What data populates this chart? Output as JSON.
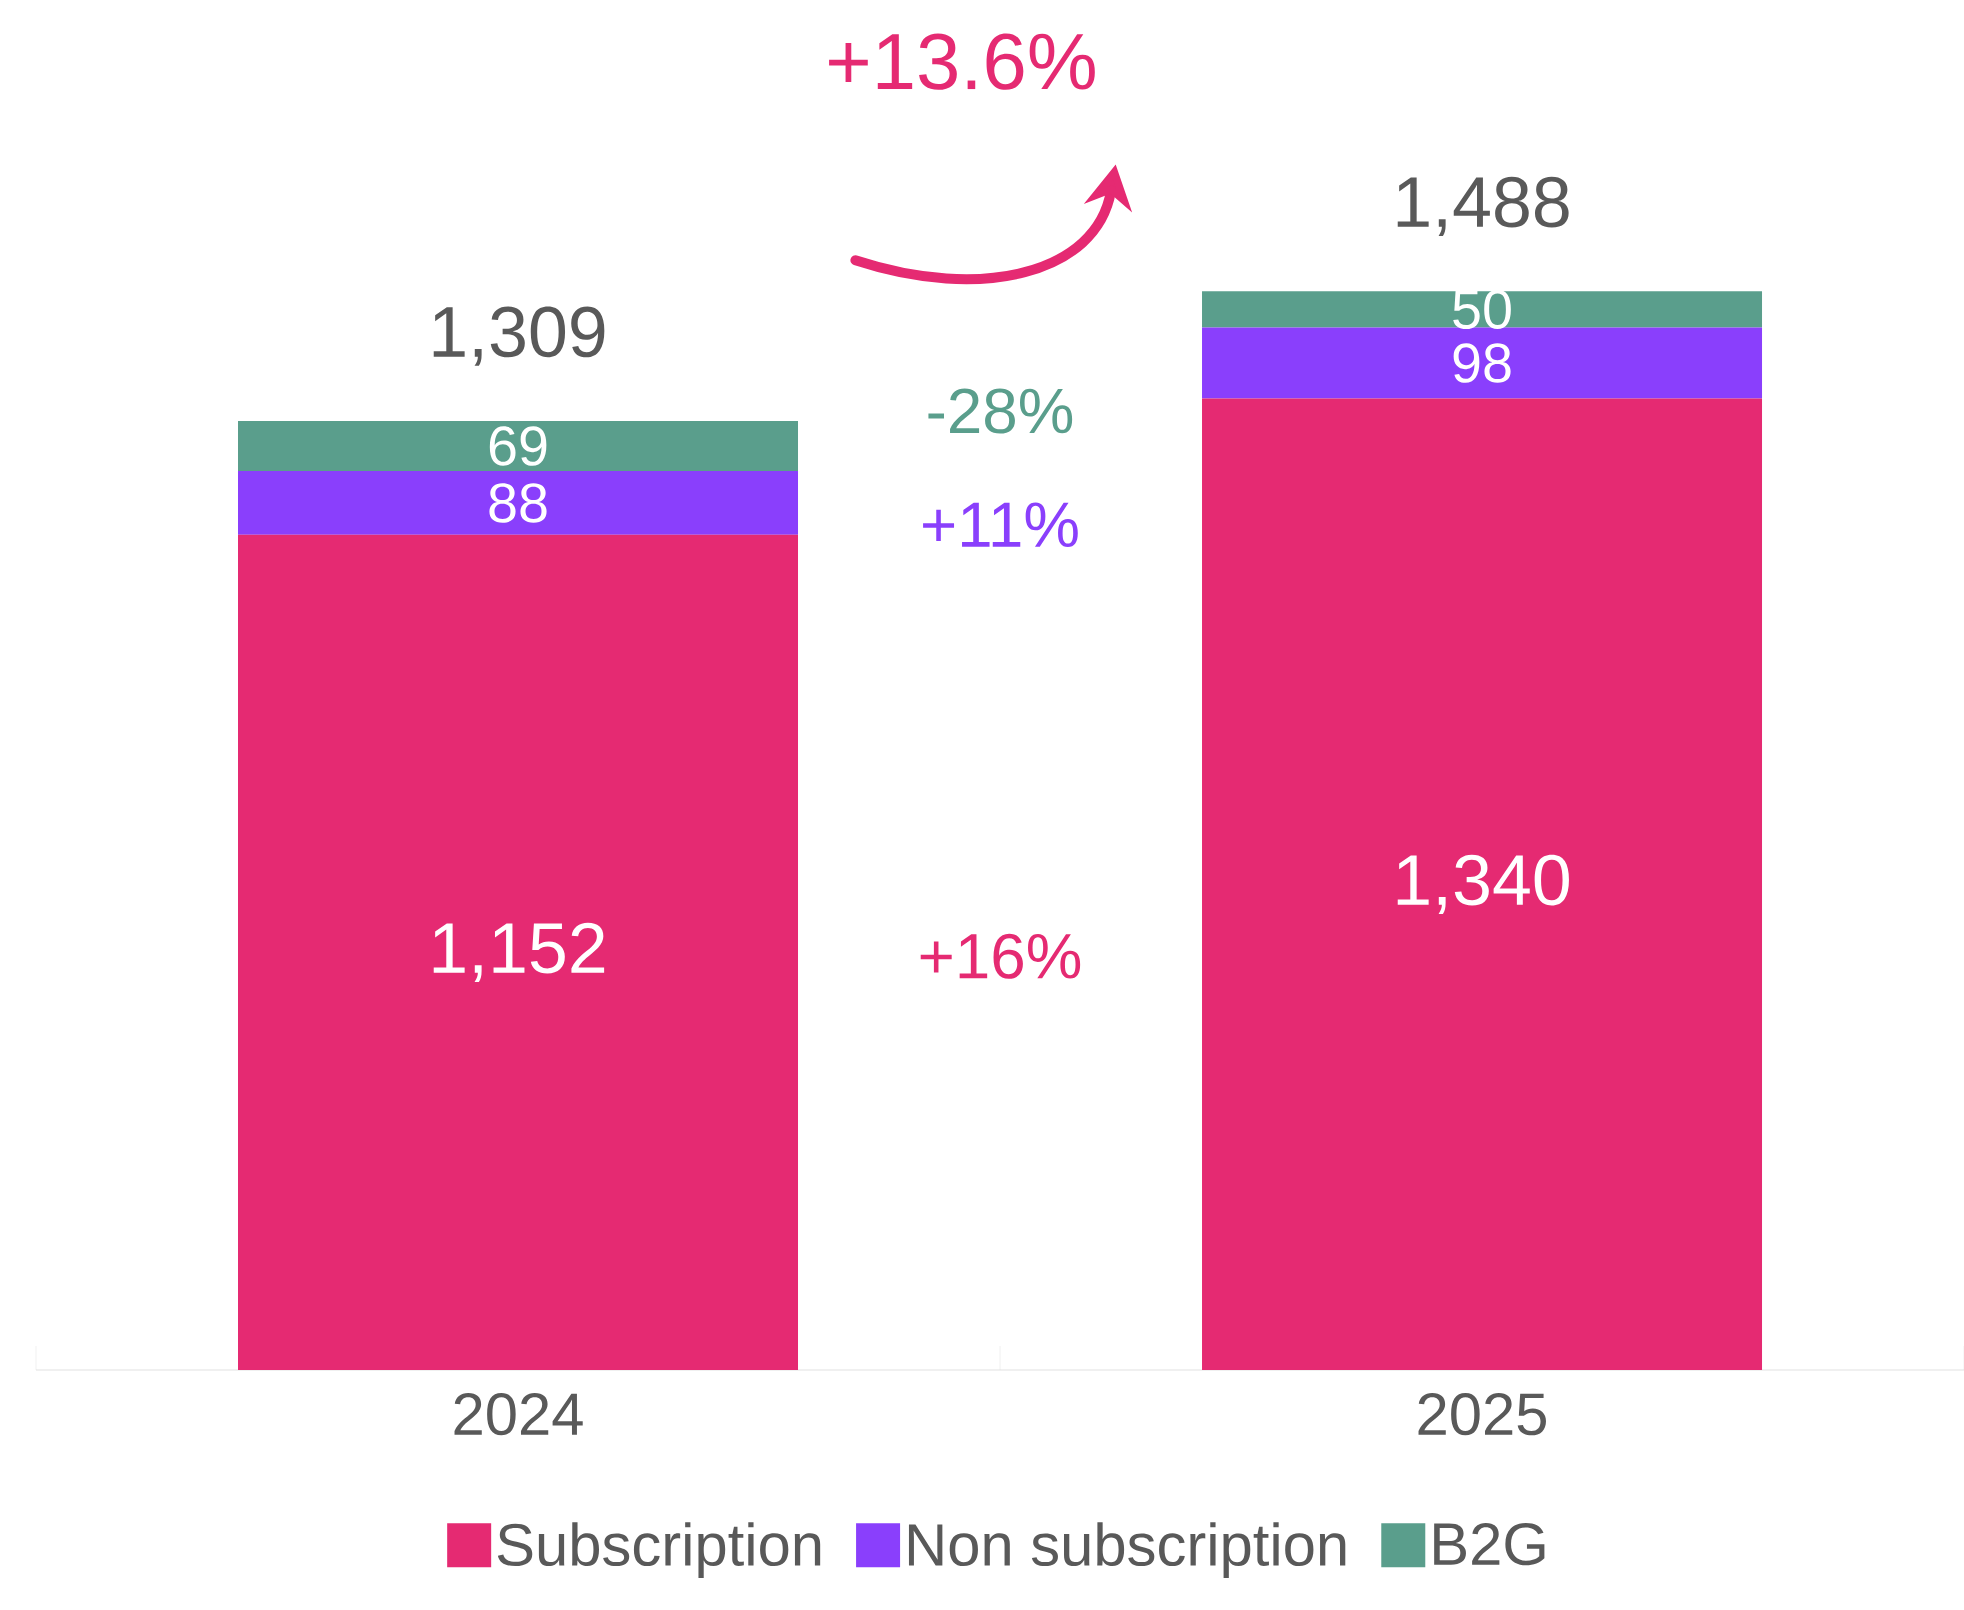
{
  "chart_data": {
    "type": "bar",
    "stacked": true,
    "categories": [
      "2024",
      "2025"
    ],
    "series": [
      {
        "name": "Subscription",
        "color": "#e52a72",
        "values": [
          1152,
          1340
        ],
        "value_labels": [
          "1,152",
          "1,340"
        ]
      },
      {
        "name": "Non subscription",
        "color": "#8a3ffc",
        "values": [
          88,
          98
        ],
        "value_labels": [
          "88",
          "98"
        ]
      },
      {
        "name": "B2G",
        "color": "#5a9e8c",
        "values": [
          69,
          50
        ],
        "value_labels": [
          "69",
          "50"
        ]
      }
    ],
    "totals": [
      "1,309",
      "1,488"
    ],
    "annotations": [
      "+13.6%",
      "-28%",
      "+11%",
      "+16%"
    ],
    "legend": "bottom"
  }
}
